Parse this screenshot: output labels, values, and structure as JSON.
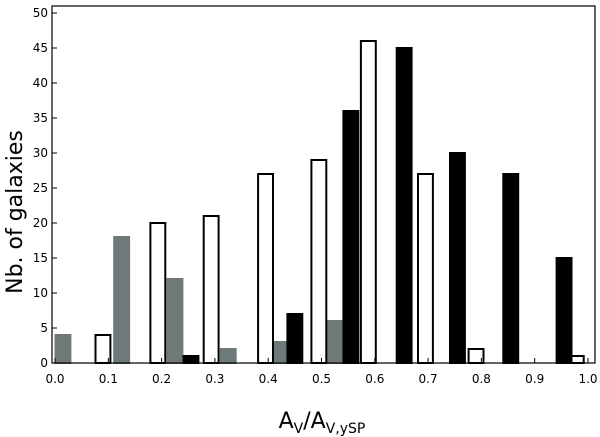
{
  "chart_data": {
    "type": "bar",
    "xlabel": {
      "main": "A",
      "sub1": "V",
      "sep": "/A",
      "sub2": "V,ySP"
    },
    "ylabel": "Nb. of galaxies",
    "xlim": [
      0.0,
      1.0
    ],
    "ylim": [
      0,
      51
    ],
    "grid": false,
    "x_ticks": [
      0.0,
      0.1,
      0.2,
      0.3,
      0.4,
      0.5,
      0.6,
      0.7,
      0.8,
      0.9,
      1.0
    ],
    "x_tick_labels": [
      "0.0",
      "0.1",
      "0.2",
      "0.3",
      "0.4",
      "0.5",
      "0.6",
      "0.7",
      "0.8",
      "0.9",
      "1.0"
    ],
    "y_ticks": [
      0,
      5,
      10,
      15,
      20,
      25,
      30,
      35,
      40,
      45,
      50
    ],
    "y_tick_labels": [
      "0",
      "5",
      "10",
      "15",
      "20",
      "25",
      "30",
      "35",
      "40",
      "45",
      "50"
    ],
    "bar_width": 0.028,
    "series": [
      {
        "fill": "#6e7a7a",
        "stroke": "#6e7a7a",
        "points": [
          {
            "x": 0.015,
            "y": 4
          },
          {
            "x": 0.125,
            "y": 18
          },
          {
            "x": 0.225,
            "y": 12
          },
          {
            "x": 0.325,
            "y": 2
          },
          {
            "x": 0.425,
            "y": 3
          },
          {
            "x": 0.525,
            "y": 6
          }
        ]
      },
      {
        "fill": "#ffffff",
        "stroke": "#000000",
        "points": [
          {
            "x": 0.09,
            "y": 4
          },
          {
            "x": 0.193,
            "y": 20
          },
          {
            "x": 0.293,
            "y": 21
          },
          {
            "x": 0.395,
            "y": 27
          },
          {
            "x": 0.495,
            "y": 29
          },
          {
            "x": 0.588,
            "y": 46
          },
          {
            "x": 0.695,
            "y": 27
          },
          {
            "x": 0.79,
            "y": 2
          },
          {
            "x": 0.978,
            "y": 1
          }
        ]
      },
      {
        "fill": "#000000",
        "stroke": "#000000",
        "points": [
          {
            "x": 0.255,
            "y": 1
          },
          {
            "x": 0.45,
            "y": 7
          },
          {
            "x": 0.555,
            "y": 36
          },
          {
            "x": 0.655,
            "y": 45
          },
          {
            "x": 0.755,
            "y": 30
          },
          {
            "x": 0.855,
            "y": 27
          },
          {
            "x": 0.955,
            "y": 15
          }
        ]
      }
    ]
  }
}
